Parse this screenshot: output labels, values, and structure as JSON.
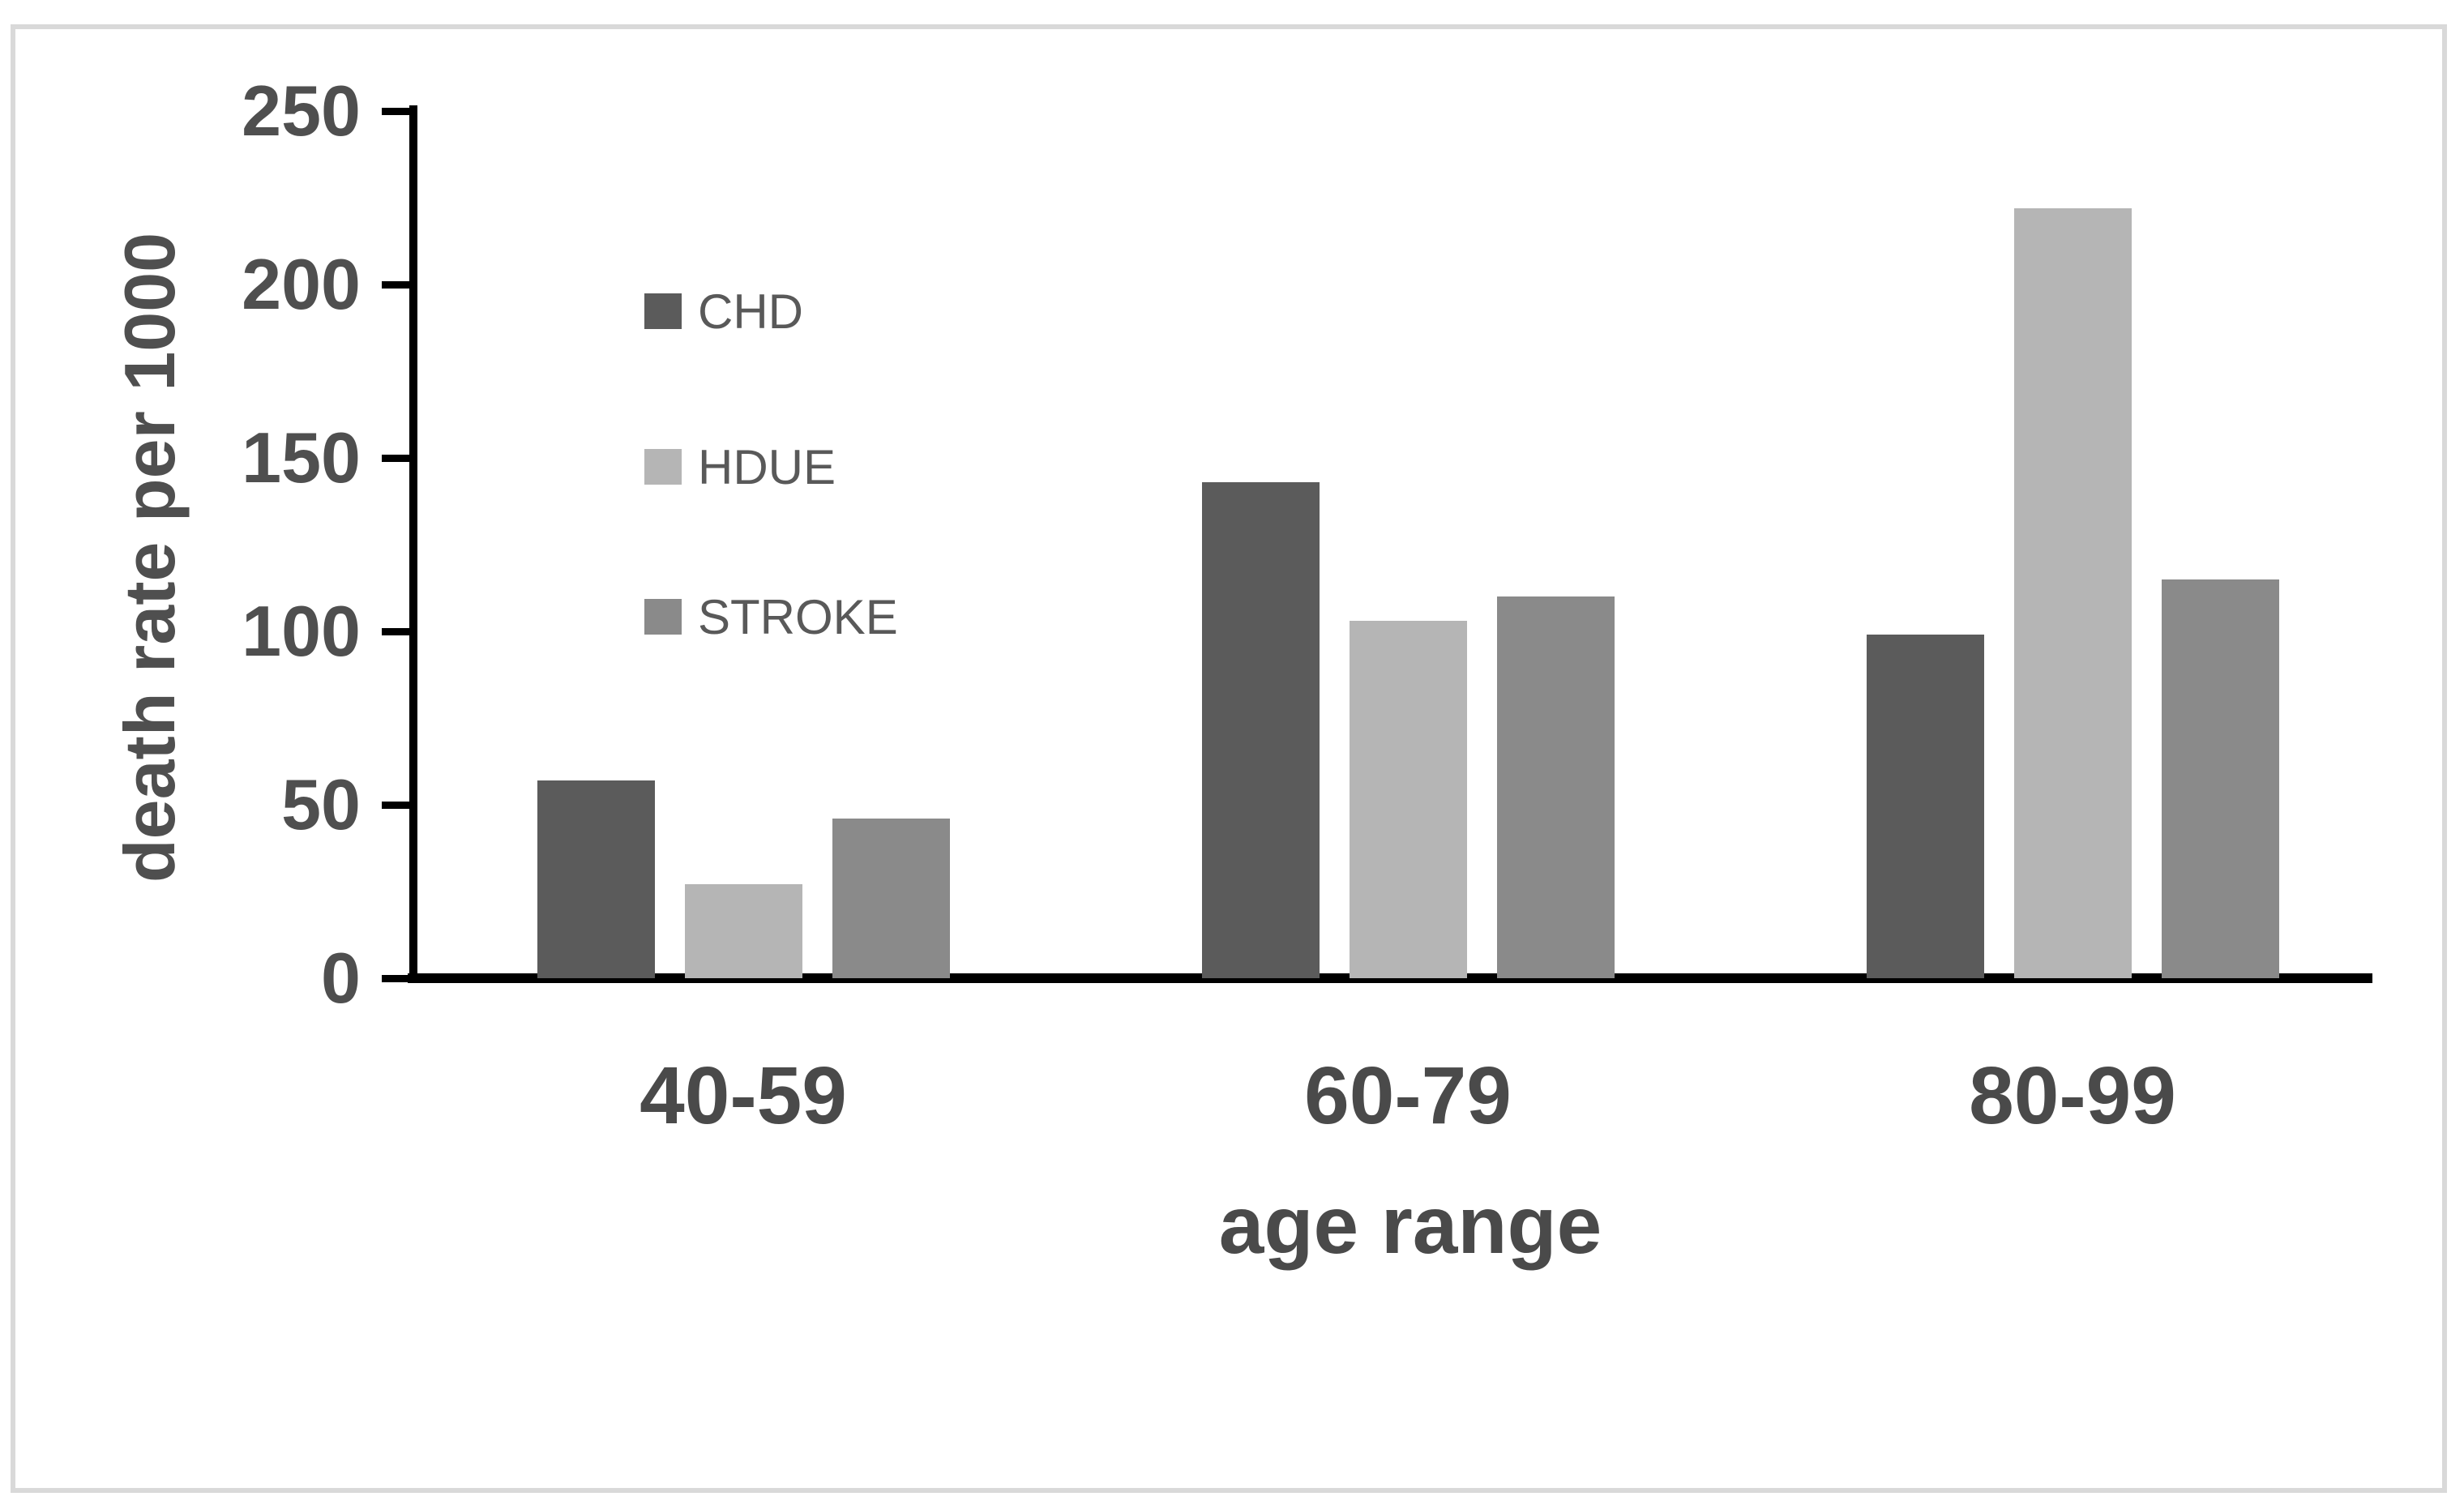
{
  "chart_data": {
    "type": "bar",
    "title": "",
    "categories": [
      "40-59",
      "60-79",
      "80-99"
    ],
    "series": [
      {
        "name": "CHD",
        "color": "#5b5b5b",
        "values": [
          57,
          143,
          99
        ]
      },
      {
        "name": "HDUE",
        "color": "#b5b5b5",
        "values": [
          27,
          103,
          222
        ]
      },
      {
        "name": "STROKE",
        "color": "#8a8a8a",
        "values": [
          46,
          110,
          115
        ]
      }
    ],
    "xlabel": "age range",
    "ylabel": "death rate per 1000",
    "ylim": [
      0,
      250
    ],
    "yticks": [
      0,
      50,
      100,
      150,
      200,
      250
    ],
    "grid": false,
    "legend_position": "upper-left-inside-vertical"
  },
  "colors": {
    "background": "#ffffff",
    "frame_border": "#d9d9d9",
    "axis_line": "#000000",
    "tick_label": "#4f4f4f",
    "category_label": "#4a4a4a",
    "axis_title": "#4f4f4f",
    "legend_text": "#595959"
  }
}
